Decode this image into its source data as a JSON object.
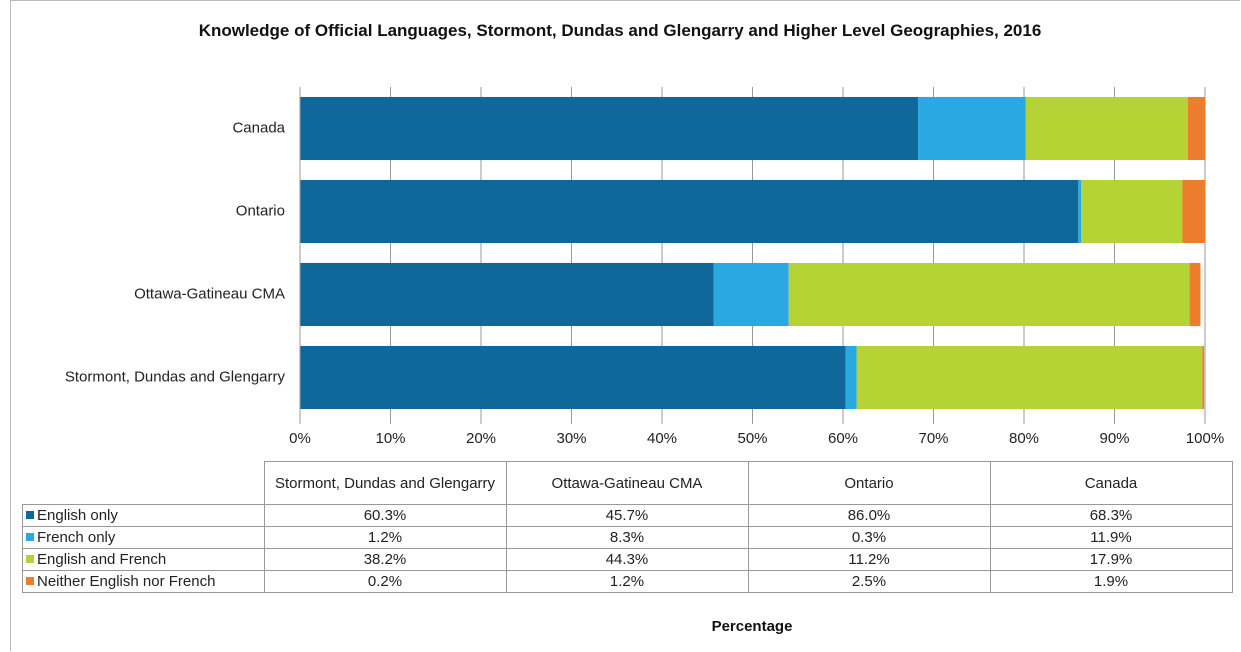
{
  "chart_data": {
    "type": "stacked_bar_horizontal",
    "title": "Knowledge of Official Languages, Stormont, Dundas and Glengarry and Higher Level Geographies, 2016",
    "x_label": "Percentage",
    "categories": [
      "Stormont, Dundas and Glengarry",
      "Ottawa-Gatineau CMA",
      "Ontario",
      "Canada"
    ],
    "series": [
      {
        "name": "English only",
        "color": "#10679a",
        "values": [
          60.3,
          45.7,
          86.0,
          68.3
        ],
        "value_labels": [
          "60.3%",
          "45.7%",
          "86.0%",
          "68.3%"
        ]
      },
      {
        "name": "French only",
        "color": "#29a9e1",
        "values": [
          1.2,
          8.3,
          0.3,
          11.9
        ],
        "value_labels": [
          "1.2%",
          "8.3%",
          "0.3%",
          "11.9%"
        ]
      },
      {
        "name": "English and French",
        "color": "#b5d334",
        "values": [
          38.2,
          44.3,
          11.2,
          17.9
        ],
        "value_labels": [
          "38.2%",
          "44.3%",
          "11.2%",
          "17.9%"
        ]
      },
      {
        "name": "Neither English nor French",
        "color": "#ec7d2d",
        "values": [
          0.2,
          1.2,
          2.5,
          1.9
        ],
        "value_labels": [
          "0.2%",
          "1.2%",
          "2.5%",
          "1.9%"
        ]
      }
    ],
    "xlim": [
      0,
      100
    ],
    "xticks": [
      {
        "value": 0,
        "label": "0%"
      },
      {
        "value": 10,
        "label": "10%"
      },
      {
        "value": 20,
        "label": "20%"
      },
      {
        "value": 30,
        "label": "30%"
      },
      {
        "value": 40,
        "label": "40%"
      },
      {
        "value": 50,
        "label": "50%"
      },
      {
        "value": 60,
        "label": "60%"
      },
      {
        "value": 70,
        "label": "70%"
      },
      {
        "value": 80,
        "label": "80%"
      },
      {
        "value": 90,
        "label": "90%"
      },
      {
        "value": 100,
        "label": "100%"
      }
    ],
    "grid": true
  }
}
